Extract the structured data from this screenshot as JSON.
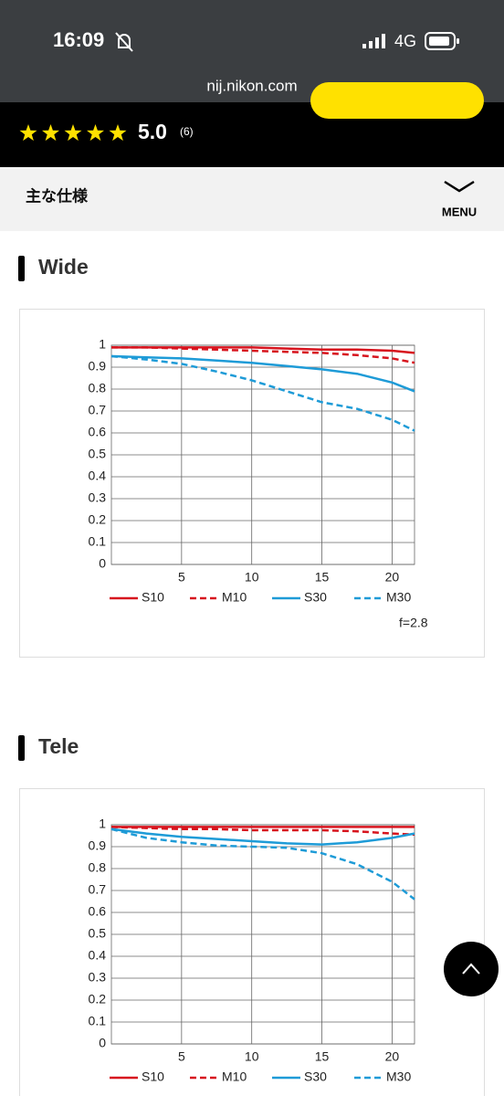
{
  "status_bar": {
    "time": "16:09",
    "network": "4G"
  },
  "url": "nij.nikon.com",
  "rating": {
    "score": "5.0",
    "count": "(6)"
  },
  "section": {
    "title": "主な仕様",
    "menu": "MENU"
  },
  "chart_data": [
    {
      "type": "line",
      "title": "Wide",
      "note": "f=2.8",
      "x": [
        0,
        2.5,
        5,
        7.5,
        10,
        12.5,
        15,
        17.5,
        20,
        21.6
      ],
      "series": [
        {
          "name": "S10",
          "color": "#d7141e",
          "dashed": false,
          "values": [
            0.99,
            0.99,
            0.99,
            0.99,
            0.99,
            0.985,
            0.98,
            0.98,
            0.975,
            0.965
          ]
        },
        {
          "name": "M10",
          "color": "#d7141e",
          "dashed": true,
          "values": [
            0.99,
            0.99,
            0.985,
            0.98,
            0.975,
            0.97,
            0.965,
            0.955,
            0.94,
            0.92
          ]
        },
        {
          "name": "S30",
          "color": "#1e9bd7",
          "dashed": false,
          "values": [
            0.95,
            0.945,
            0.94,
            0.93,
            0.92,
            0.905,
            0.89,
            0.87,
            0.83,
            0.79
          ]
        },
        {
          "name": "M30",
          "color": "#1e9bd7",
          "dashed": true,
          "values": [
            0.95,
            0.935,
            0.915,
            0.88,
            0.84,
            0.79,
            0.74,
            0.71,
            0.66,
            0.61
          ]
        }
      ],
      "xlim": [
        0,
        21.6
      ],
      "xticks": [
        5,
        10,
        15,
        20
      ],
      "ylim": [
        0,
        1
      ],
      "yticks": [
        0,
        0.1,
        0.2,
        0.3,
        0.4,
        0.5,
        0.6,
        0.7,
        0.8,
        0.9,
        1
      ],
      "grid": true
    },
    {
      "type": "line",
      "title": "Tele",
      "x": [
        0,
        2.5,
        5,
        7.5,
        10,
        12.5,
        15,
        17.5,
        20,
        21.6
      ],
      "series": [
        {
          "name": "S10",
          "color": "#d7141e",
          "dashed": false,
          "values": [
            0.99,
            0.99,
            0.99,
            0.99,
            0.99,
            0.99,
            0.99,
            0.99,
            0.99,
            0.99
          ]
        },
        {
          "name": "M10",
          "color": "#d7141e",
          "dashed": true,
          "values": [
            0.99,
            0.985,
            0.98,
            0.98,
            0.975,
            0.975,
            0.975,
            0.97,
            0.96,
            0.955
          ]
        },
        {
          "name": "S30",
          "color": "#1e9bd7",
          "dashed": false,
          "values": [
            0.98,
            0.96,
            0.945,
            0.935,
            0.925,
            0.915,
            0.91,
            0.92,
            0.94,
            0.96
          ]
        },
        {
          "name": "M30",
          "color": "#1e9bd7",
          "dashed": true,
          "values": [
            0.98,
            0.94,
            0.92,
            0.905,
            0.9,
            0.895,
            0.87,
            0.82,
            0.74,
            0.66
          ]
        }
      ],
      "xlim": [
        0,
        21.6
      ],
      "xticks": [
        5,
        10,
        15,
        20
      ],
      "ylim": [
        0,
        1
      ],
      "yticks": [
        0,
        0.1,
        0.2,
        0.3,
        0.4,
        0.5,
        0.6,
        0.7,
        0.8,
        0.9,
        1
      ],
      "grid": true
    }
  ]
}
